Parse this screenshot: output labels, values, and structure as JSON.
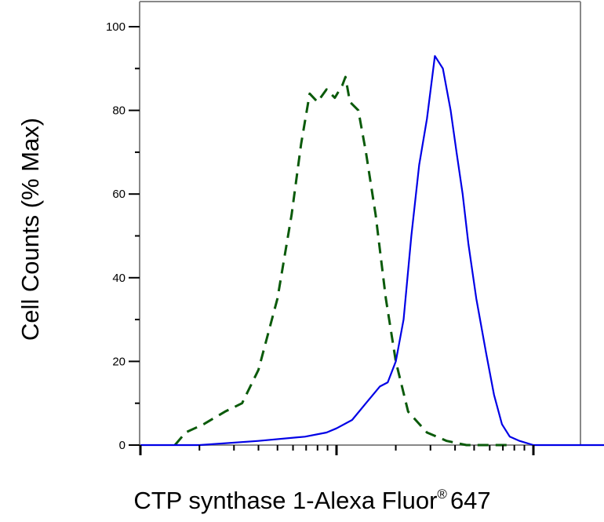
{
  "chart_data": {
    "type": "line",
    "title": "",
    "ylabel": "Cell Counts (% Max)",
    "xlabel": {
      "main": "CTP synthase 1-Alexa Fluor",
      "superscript": "®",
      "suffix": "647"
    },
    "x_scale": "log",
    "x_range": [
      1,
      1000
    ],
    "ylim": [
      0,
      105
    ],
    "y_ticks": [
      {
        "value": 0,
        "label": "0"
      },
      {
        "value": 20,
        "label": "20"
      },
      {
        "value": 40,
        "label": "40"
      },
      {
        "value": 60,
        "label": "60"
      },
      {
        "value": 80,
        "label": "80"
      },
      {
        "value": 100,
        "label": "100"
      }
    ],
    "grid": false,
    "legend": "none",
    "series": [
      {
        "style": "dashed",
        "color": "#0a5a0a",
        "x": [
          1.5,
          1.7,
          2.1,
          2.7,
          3.3,
          4.0,
          5.0,
          5.9,
          6.6,
          7.3,
          8.0,
          8.9,
          9.8,
          10.7,
          11.1,
          11.7,
          12.9,
          14.1,
          15.8,
          17.8,
          20.0,
          23.1,
          28.8,
          36.3,
          45.7,
          57.5,
          75.9
        ],
        "y": [
          0,
          3,
          5,
          8,
          10,
          18,
          35,
          55,
          72,
          84,
          82,
          85,
          83,
          86,
          88,
          82,
          80,
          70,
          55,
          35,
          20,
          8,
          3,
          1,
          0,
          0,
          0
        ]
      },
      {
        "style": "solid",
        "color": "#0000e6",
        "x": [
          1.0,
          2.0,
          4.0,
          6.9,
          8.9,
          10.0,
          12.0,
          14.1,
          16.6,
          18.2,
          20.0,
          21.9,
          24.0,
          26.3,
          28.8,
          31.6,
          34.7,
          38.0,
          40.7,
          43.7,
          46.8,
          51.3,
          57.5,
          63.1,
          69.2,
          75.9,
          85.1,
          100.0,
          125.9,
          158.5,
          251.2,
          398.1
        ],
        "y": [
          0,
          0,
          1,
          2,
          3,
          4,
          6,
          10,
          14,
          15,
          20,
          30,
          50,
          67,
          78,
          93,
          90,
          80,
          70,
          60,
          48,
          35,
          22,
          12,
          5,
          2,
          1,
          0,
          0,
          0,
          0,
          0
        ]
      }
    ]
  }
}
